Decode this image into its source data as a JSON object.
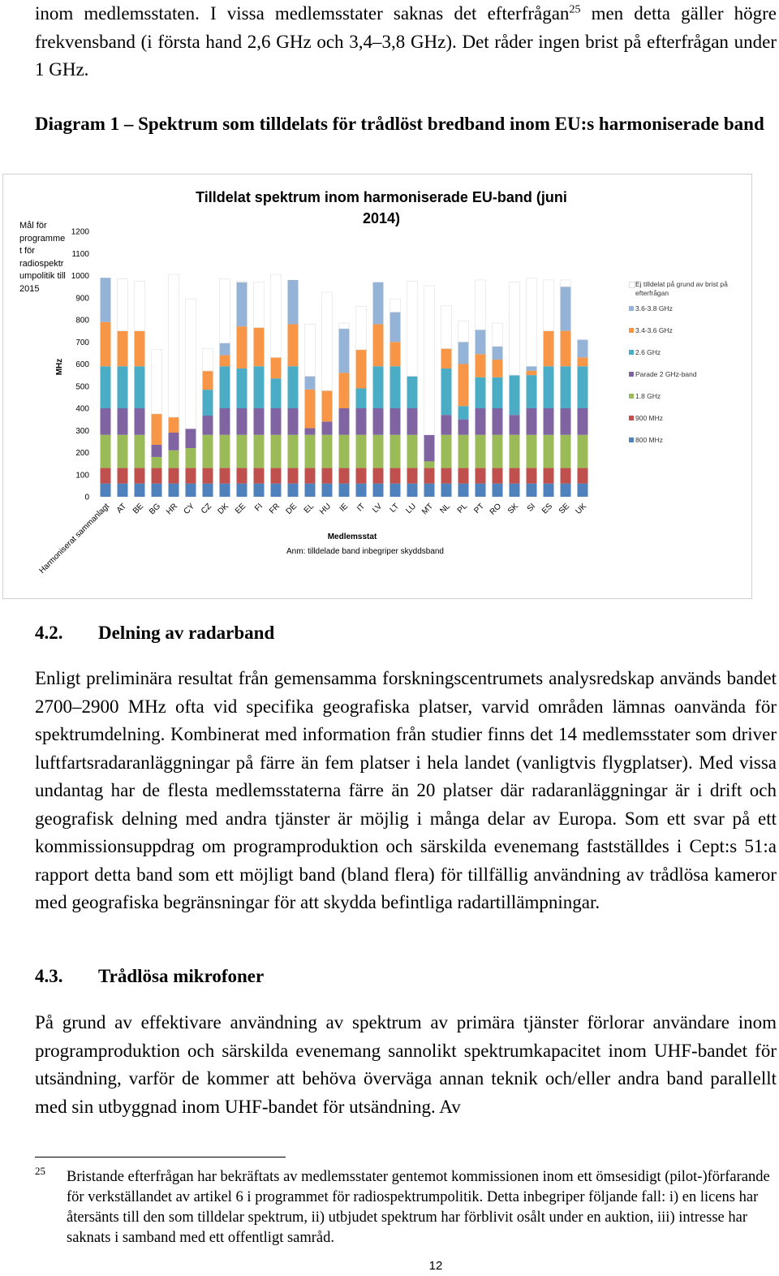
{
  "intro": {
    "text_before": "inom medlemsstaten. I vissa medlemsstater saknas det efterfrågan",
    "footnote_ref": "25",
    "text_after": "men detta gäller högre frekvensband (i första hand 2,6 GHz och 3,4–3,8 GHz). Det råder ingen brist på efterfrågan under 1 GHz."
  },
  "figure_caption": "Diagram 1 – Spektrum som tilldelats för trådlöst bredband inom EU:s harmoniserade band",
  "chart_data": {
    "type": "stacked_bar",
    "title": "Tilldelat spektrum inom harmoniserade EU-band (juni 2014)",
    "target_label": "Mål för programmet för radiospektrumpolitik till 2015",
    "y_label": "MHz",
    "x_label": "Medlemsstat",
    "note": "Anm: tilldelade band inbegriper skyddsband",
    "categories": [
      "Harmoniserat sammanlagt",
      "AT",
      "BE",
      "BG",
      "HR",
      "CY",
      "CZ",
      "DK",
      "EE",
      "FI",
      "FR",
      "DE",
      "EL",
      "HU",
      "IE",
      "IT",
      "LV",
      "LT",
      "LU",
      "MT",
      "NL",
      "PL",
      "PT",
      "RO",
      "SK",
      "SI",
      "ES",
      "SE",
      "UK"
    ],
    "ylim": [
      0,
      1200
    ],
    "yticks": [
      0,
      100,
      200,
      300,
      400,
      500,
      600,
      700,
      800,
      900,
      1000,
      1100,
      1200
    ],
    "grid": false,
    "series": [
      {
        "name": "800 MHz",
        "color": "#4f81bd",
        "values": [
          60,
          60,
          60,
          60,
          60,
          60,
          60,
          60,
          60,
          60,
          60,
          60,
          60,
          60,
          60,
          60,
          60,
          60,
          60,
          60,
          60,
          60,
          60,
          60,
          60,
          60,
          60,
          60,
          60
        ]
      },
      {
        "name": "900 MHz",
        "color": "#c0504d",
        "values": [
          70,
          70,
          70,
          70,
          70,
          70,
          70,
          70,
          70,
          70,
          70,
          70,
          70,
          70,
          70,
          70,
          70,
          70,
          70,
          70,
          70,
          70,
          70,
          70,
          70,
          70,
          70,
          70,
          70
        ]
      },
      {
        "name": "1.8 GHz",
        "color": "#9bbb59",
        "values": [
          150,
          150,
          150,
          50,
          80,
          90,
          150,
          150,
          150,
          150,
          150,
          150,
          150,
          150,
          150,
          150,
          150,
          150,
          150,
          30,
          150,
          150,
          150,
          150,
          150,
          150,
          150,
          150,
          150
        ]
      },
      {
        "name": "Parade 2 GHz-band",
        "color": "#8064a2",
        "values": [
          120,
          120,
          120,
          55,
          80,
          88,
          87,
          120,
          120,
          120,
          120,
          120,
          30,
          60,
          120,
          120,
          120,
          120,
          120,
          120,
          90,
          70,
          120,
          120,
          90,
          120,
          120,
          120,
          120
        ]
      },
      {
        "name": "2.6 GHz",
        "color": "#4bacc6",
        "values": [
          190,
          190,
          190,
          0,
          0,
          0,
          117,
          190,
          180,
          190,
          135,
          190,
          0,
          0,
          0,
          90,
          190,
          190,
          145,
          0,
          210,
          60,
          140,
          140,
          180,
          150,
          190,
          190,
          190
        ]
      },
      {
        "name": "3.4-3.6 GHz",
        "color": "#f79646",
        "values": [
          200,
          160,
          160,
          140,
          70,
          0,
          85,
          50,
          190,
          175,
          95,
          190,
          175,
          140,
          160,
          175,
          190,
          110,
          0,
          0,
          90,
          190,
          105,
          80,
          0,
          20,
          160,
          160,
          40
        ]
      },
      {
        "name": "3.6-3.8 GHz",
        "color": "#95b3d7",
        "values": [
          200,
          0,
          0,
          0,
          0,
          0,
          0,
          55,
          200,
          0,
          0,
          200,
          60,
          0,
          200,
          0,
          190,
          135,
          0,
          0,
          0,
          100,
          110,
          60,
          0,
          20,
          0,
          200,
          80
        ]
      },
      {
        "name": "Ej tilldelat på grund av brist på efterfrågan",
        "color": "#ffffff",
        "values": [
          0,
          235,
          225,
          290,
          645,
          587,
          100,
          290,
          5,
          205,
          375,
          0,
          235,
          445,
          25,
          195,
          0,
          60,
          430,
          674,
          195,
          95,
          225,
          105,
          420,
          400,
          230,
          30,
          0
        ]
      }
    ]
  },
  "section_4_2": {
    "number": "4.2.",
    "title": "Delning av radarband",
    "text": "Enligt preliminära resultat från gemensamma forskningscentrumets analysredskap används bandet 2700–2900 MHz ofta vid specifika geografiska platser, varvid områden lämnas oanvända för spektrumdelning. Kombinerat med information från studier finns det 14 medlemsstater som driver luftfartsradaranläggningar på färre än fem platser i hela landet (vanligtvis flygplatser). Med vissa undantag har de flesta medlemsstaterna färre än 20 platser där radaranläggningar är i drift och geografisk delning med andra tjänster är möjlig i många delar av Europa. Som ett svar på ett kommissionsuppdrag om programproduktion och särskilda evenemang fastställdes i Cept:s 51:a rapport detta band som ett möjligt band (bland flera) för tillfällig användning av trådlösa kameror med geografiska begränsningar för att skydda befintliga radartillämpningar."
  },
  "section_4_3": {
    "number": "4.3.",
    "title": "Trådlösa mikrofoner",
    "text": "På grund av effektivare användning av spektrum av primära tjänster förlorar användare inom programproduktion och särskilda evenemang sannolikt spektrumkapacitet inom UHF-bandet för utsändning, varför de kommer att behöva överväga annan teknik och/eller andra band parallellt med sin utbyggnad inom UHF-bandet för utsändning. Av"
  },
  "footnote": {
    "number": "25",
    "text": "Bristande efterfrågan har bekräftats av medlemsstater gentemot kommissionen inom ett ömsesidigt (pilot-)förfarande för verkställandet av artikel 6 i programmet för radiospektrumpolitik. Detta inbegriper följande fall: i) en licens har återsänts till den som tilldelar spektrum, ii) utbjudet spektrum har förblivit osålt under en auktion, iii) intresse har saknats i samband med ett offentligt samråd."
  },
  "page_number": "12"
}
